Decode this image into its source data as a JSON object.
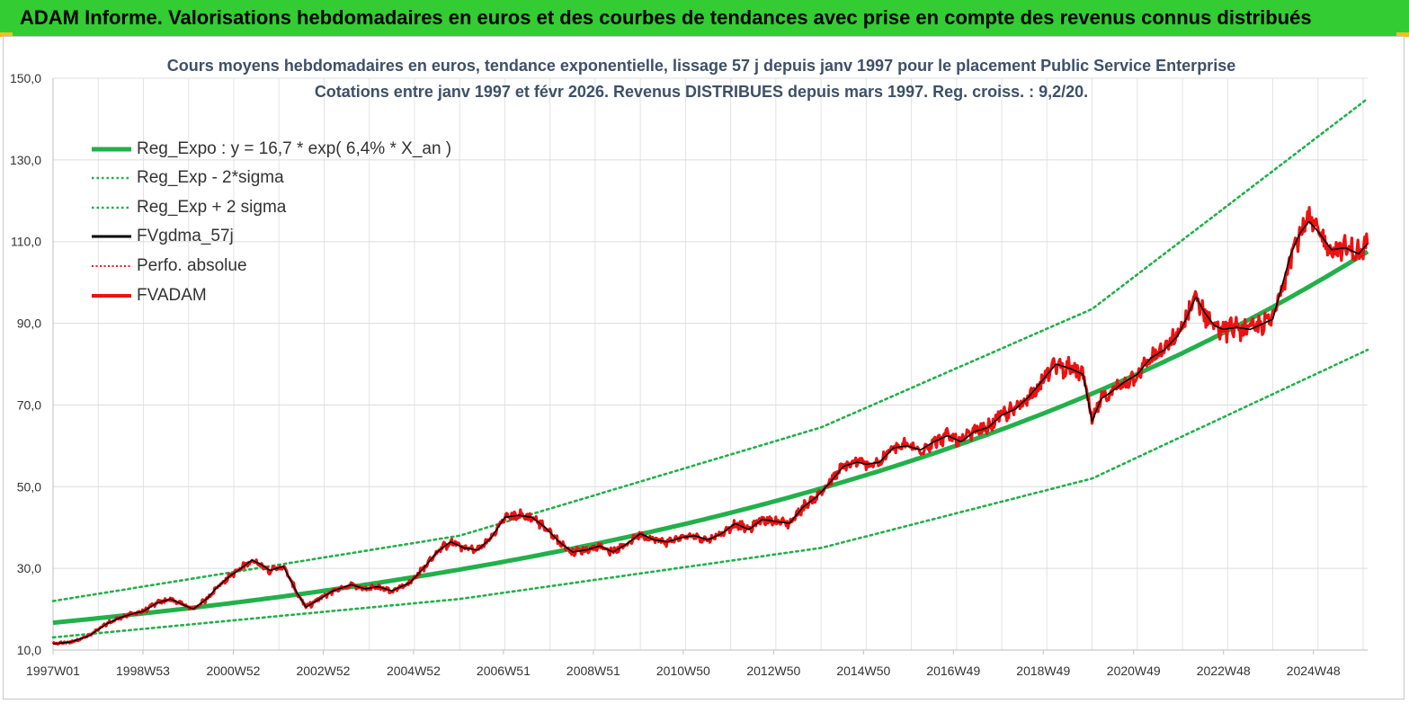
{
  "banner": {
    "title": "ADAM Informe. Valorisations hebdomadaires en euros et des courbes de tendances avec prise en compte des revenus connus distribués",
    "color": "#33cc33"
  },
  "chart_data": {
    "type": "line",
    "title_line1": "Cours moyens hebdomadaires en euros, tendance exponentielle, lissage 57 j depuis janv 1997 pour le placement Public Service  Enterprise",
    "title_line2": "Cotations entre janv 1997 et févr 2026. Revenus DISTRIBUES depuis mars 1997. Reg. croiss. : 9,2/20.",
    "xlabel": "",
    "ylabel": "",
    "ylim": [
      10,
      150
    ],
    "xlim": [
      1997.0,
      2026.1
    ],
    "y_ticks": [
      "10,0",
      "30,0",
      "50,0",
      "70,0",
      "90,0",
      "110,0",
      "130,0",
      "150,0"
    ],
    "x_ticks": [
      {
        "label": "1997W01",
        "x": 1997.0
      },
      {
        "label": "1998W53",
        "x": 1998.99
      },
      {
        "label": "2000W52",
        "x": 2000.99
      },
      {
        "label": "2002W52",
        "x": 2002.98
      },
      {
        "label": "2004W52",
        "x": 2004.98
      },
      {
        "label": "2006W51",
        "x": 2006.97
      },
      {
        "label": "2008W51",
        "x": 2008.96
      },
      {
        "label": "2010W50",
        "x": 2010.95
      },
      {
        "label": "2012W50",
        "x": 2012.95
      },
      {
        "label": "2014W50",
        "x": 2014.94
      },
      {
        "label": "2016W49",
        "x": 2016.93
      },
      {
        "label": "2018W49",
        "x": 2018.92
      },
      {
        "label": "2020W49",
        "x": 2020.92
      },
      {
        "label": "2022W48",
        "x": 2022.91
      },
      {
        "label": "2024W48",
        "x": 2024.9
      }
    ],
    "grid": true,
    "legend_position": "top-left",
    "series": [
      {
        "name": "Reg_Expo : y = 16,7 * exp( 6,4% *  X_an )",
        "kind": "regression",
        "color": "#22b04a",
        "style": "solid-thick",
        "a": 16.7,
        "b": 0.064
      },
      {
        "name": "Reg_Exp - 2*sigma",
        "kind": "regression-band",
        "color": "#22b04a",
        "style": "dotted",
        "x": [
          1997.0,
          2006.0,
          2014.0,
          2020.0,
          2026.1
        ],
        "y": [
          13.1,
          22.5,
          35.0,
          52.0,
          83.5
        ]
      },
      {
        "name": "Reg_Exp + 2 sigma",
        "kind": "regression-band",
        "color": "#22b04a",
        "style": "dotted",
        "x": [
          1997.0,
          2006.0,
          2014.0,
          2020.0,
          2026.1
        ],
        "y": [
          22.0,
          38.0,
          64.5,
          93.5,
          145.0
        ]
      },
      {
        "name": "FVgdma_57j",
        "kind": "smoothed",
        "color": "#000000",
        "style": "solid"
      },
      {
        "name": "Perfo. absolue",
        "kind": "hidden",
        "color": "#e02020",
        "style": "dotted"
      },
      {
        "name": "FVADAM",
        "kind": "price",
        "color": "#ee1111",
        "style": "solid-thick",
        "x": [
          1997.0,
          1997.4,
          1997.8,
          1998.2,
          1998.5,
          1998.8,
          1999.0,
          1999.3,
          1999.6,
          1999.9,
          2000.1,
          2000.4,
          2000.6,
          2000.9,
          2001.1,
          2001.4,
          2001.6,
          2001.8,
          2002.1,
          2002.4,
          2002.6,
          2002.9,
          2003.2,
          2003.6,
          2003.9,
          2004.2,
          2004.5,
          2004.9,
          2005.2,
          2005.5,
          2005.8,
          2006.1,
          2006.4,
          2006.7,
          2007.0,
          2007.3,
          2007.6,
          2007.9,
          2008.2,
          2008.5,
          2008.8,
          2009.1,
          2009.4,
          2009.7,
          2010.0,
          2010.3,
          2010.6,
          2010.9,
          2011.2,
          2011.5,
          2011.8,
          2012.1,
          2012.4,
          2012.7,
          2013.0,
          2013.3,
          2013.6,
          2013.9,
          2014.2,
          2014.5,
          2014.8,
          2015.0,
          2015.3,
          2015.6,
          2015.9,
          2016.2,
          2016.5,
          2016.8,
          2017.1,
          2017.4,
          2017.7,
          2018.0,
          2018.3,
          2018.6,
          2018.9,
          2019.2,
          2019.5,
          2019.8,
          2020.0,
          2020.2,
          2020.4,
          2020.7,
          2021.0,
          2021.3,
          2021.6,
          2021.9,
          2022.1,
          2022.3,
          2022.5,
          2022.7,
          2022.9,
          2023.2,
          2023.5,
          2023.8,
          2024.0,
          2024.2,
          2024.4,
          2024.6,
          2024.8,
          2025.0,
          2025.3,
          2025.6,
          2025.9,
          2026.1
        ],
        "y": [
          11.5,
          12.0,
          13.5,
          16.5,
          18.0,
          19.0,
          19.5,
          21.5,
          22.5,
          21.0,
          20.0,
          22.5,
          25.0,
          28.0,
          29.5,
          32.0,
          31.0,
          29.5,
          30.5,
          24.0,
          20.5,
          22.5,
          24.5,
          26.0,
          25.0,
          25.5,
          24.5,
          26.5,
          30.0,
          34.0,
          36.5,
          35.0,
          34.5,
          37.5,
          42.5,
          43.0,
          42.5,
          40.0,
          36.5,
          34.0,
          34.5,
          35.5,
          34.0,
          36.0,
          38.5,
          37.0,
          36.5,
          37.5,
          38.0,
          37.0,
          38.5,
          41.0,
          39.5,
          42.0,
          41.5,
          41.0,
          45.0,
          47.5,
          51.0,
          55.0,
          56.0,
          55.5,
          56.0,
          59.5,
          60.0,
          59.0,
          61.0,
          62.5,
          61.0,
          63.5,
          64.5,
          67.5,
          69.0,
          72.0,
          76.0,
          80.0,
          79.0,
          77.5,
          66.0,
          71.5,
          73.0,
          75.5,
          77.5,
          81.5,
          83.5,
          87.0,
          91.5,
          96.5,
          92.5,
          89.5,
          88.5,
          89.0,
          88.5,
          90.0,
          91.0,
          99.0,
          107.0,
          112.0,
          115.0,
          112.5,
          108.0,
          108.5,
          107.0,
          109.5
        ]
      }
    ]
  },
  "legend": [
    {
      "label": "Reg_Expo : y = 16,7 * exp( 6,4% *  X_an )"
    },
    {
      "label": "Reg_Exp - 2*sigma"
    },
    {
      "label": "Reg_Exp + 2 sigma"
    },
    {
      "label": "FVgdma_57j"
    },
    {
      "label": "Perfo. absolue"
    },
    {
      "label": "FVADAM"
    }
  ]
}
